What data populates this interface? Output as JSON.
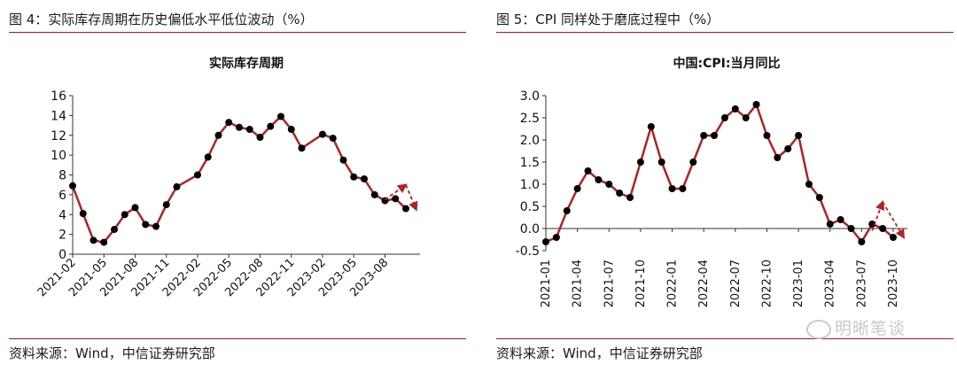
{
  "figures": [
    {
      "caption": "图 4：实际库存周期在历史偏低水平低位波动（%）",
      "source": "资料来源：Wind，中信证券研究部",
      "chart_data": {
        "type": "line",
        "title": "实际库存周期",
        "xlabel": "",
        "ylabel": "",
        "ylim": [
          0,
          16
        ],
        "yticks": [
          "0",
          "2",
          "4",
          "6",
          "8",
          "10",
          "12",
          "14",
          "16"
        ],
        "xtick_labels": [
          "2021-02",
          "2021-05",
          "2021-08",
          "2021-11",
          "2022-02",
          "2022-05",
          "2022-08",
          "2022-11",
          "2023-02",
          "2023-05",
          "2023-08"
        ],
        "x": [
          "2021-02",
          "2021-03",
          "2021-04",
          "2021-05",
          "2021-06",
          "2021-07",
          "2021-08",
          "2021-09",
          "2021-10",
          "2021-11",
          "2021-12",
          "2022-01",
          "2022-02",
          "2022-03",
          "2022-04",
          "2022-05",
          "2022-06",
          "2022-07",
          "2022-08",
          "2022-09",
          "2022-10",
          "2022-11",
          "2022-12",
          "2023-01",
          "2023-02",
          "2023-03",
          "2023-04",
          "2023-05",
          "2023-06",
          "2023-07",
          "2023-08",
          "2023-09",
          "2023-10"
        ],
        "series": [
          {
            "values": [
              6.9,
              4.1,
              1.4,
              1.2,
              2.5,
              4.0,
              4.7,
              3.0,
              2.8,
              5.0,
              6.8,
              null,
              8.0,
              9.8,
              12.0,
              13.3,
              12.8,
              12.6,
              11.8,
              12.9,
              13.9,
              12.6,
              10.7,
              null,
              12.1,
              11.7,
              9.5,
              7.8,
              7.6,
              6.0,
              5.4,
              5.6,
              4.6
            ]
          }
        ],
        "projection_arrows": [
          {
            "from": [
              "2023-08",
              5.5
            ],
            "to": [
              "2023-10",
              7.0
            ]
          },
          {
            "from": [
              "2023-10",
              7.0
            ],
            "to": [
              "2023-11",
              4.5
            ]
          }
        ],
        "line_color": "#b22222",
        "marker_color": "#000000",
        "grid": false
      }
    },
    {
      "caption": "图 5：CPI 同样处于磨底过程中（%）",
      "source": "资料来源：Wind，中信证券研究部",
      "chart_data": {
        "type": "line",
        "title": "中国:CPI:当月同比",
        "xlabel": "",
        "ylabel": "",
        "ylim": [
          -0.5,
          3.0
        ],
        "yticks": [
          "-0.5",
          "0.0",
          "0.5",
          "1.0",
          "1.5",
          "2.0",
          "2.5",
          "3.0"
        ],
        "xtick_labels": [
          "2021-01",
          "2021-04",
          "2021-07",
          "2021-10",
          "2022-01",
          "2022-04",
          "2022-07",
          "2022-10",
          "2023-01",
          "2023-04",
          "2023-07",
          "2023-10"
        ],
        "x": [
          "2021-01",
          "2021-02",
          "2021-03",
          "2021-04",
          "2021-05",
          "2021-06",
          "2021-07",
          "2021-08",
          "2021-09",
          "2021-10",
          "2021-11",
          "2021-12",
          "2022-01",
          "2022-02",
          "2022-03",
          "2022-04",
          "2022-05",
          "2022-06",
          "2022-07",
          "2022-08",
          "2022-09",
          "2022-10",
          "2022-11",
          "2022-12",
          "2023-01",
          "2023-02",
          "2023-03",
          "2023-04",
          "2023-05",
          "2023-06",
          "2023-07",
          "2023-08",
          "2023-09",
          "2023-10"
        ],
        "series": [
          {
            "values": [
              -0.3,
              -0.2,
              0.4,
              0.9,
              1.3,
              1.1,
              1.0,
              0.8,
              0.7,
              1.5,
              2.3,
              1.5,
              0.9,
              0.9,
              1.5,
              2.1,
              2.1,
              2.5,
              2.7,
              2.5,
              2.8,
              2.1,
              1.6,
              1.8,
              2.1,
              1.0,
              0.7,
              0.1,
              0.2,
              0.0,
              -0.3,
              0.1,
              0.0,
              -0.2
            ]
          }
        ],
        "projection_arrows": [
          {
            "from": [
              "2023-08",
              -0.05
            ],
            "to": [
              "2023-09",
              0.6
            ]
          },
          {
            "from": [
              "2023-09",
              0.6
            ],
            "to": [
              "2023-11",
              -0.2
            ]
          }
        ],
        "line_color": "#b22222",
        "marker_color": "#000000",
        "grid": false
      }
    }
  ],
  "watermark": "明晰笔谈"
}
